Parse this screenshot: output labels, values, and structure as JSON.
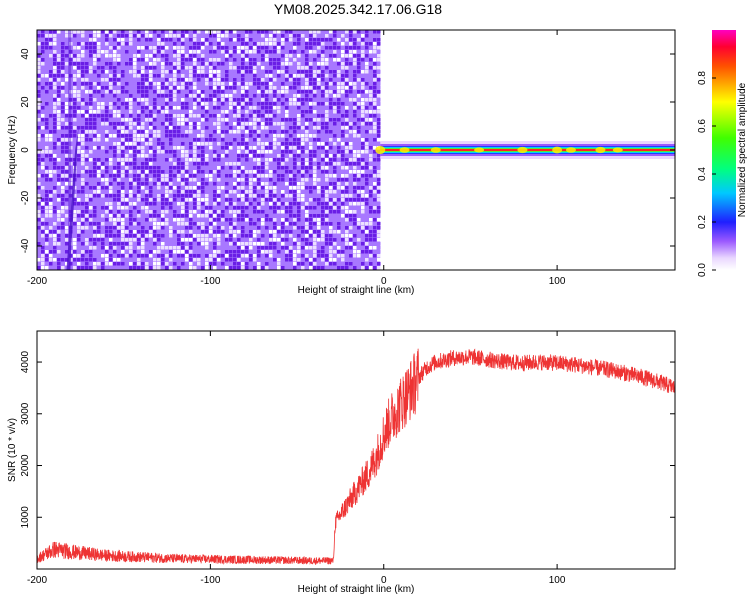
{
  "title": "YM08.2025.342.17.06.G18",
  "colors": {
    "spec_dark": "#6a1ee6",
    "spec_mid": "#a878ff",
    "spec_light": "#ece0ff",
    "snr_line": "#ee3333"
  },
  "chart_data": [
    {
      "type": "heatmap",
      "title": "",
      "xlabel": "Height of straight line (km)",
      "ylabel": "Frequency (Hz)",
      "xlim": [
        -200,
        168
      ],
      "ylim": [
        -50,
        50
      ],
      "xticks": [
        "-200",
        "-100",
        "0",
        "100"
      ],
      "yticks": [
        "-40",
        "-20",
        "0",
        "20",
        "40"
      ],
      "grid": false,
      "noise_region_km": [
        -200,
        -2
      ],
      "signal_band_hz": [
        -2,
        2
      ],
      "signal_start_km": -2,
      "colorbar": {
        "label": "Normalized spectral amplitude",
        "range": [
          0.0,
          1.0
        ],
        "ticks": [
          "0.0",
          "0.2",
          "0.4",
          "0.6",
          "0.8"
        ]
      }
    },
    {
      "type": "line",
      "title": "",
      "xlabel": "Height of straight line (km)",
      "ylabel": "SNR (10 * v/v)",
      "xlim": [
        -200,
        168
      ],
      "ylim": [
        0,
        4600
      ],
      "xticks": [
        "-200",
        "-100",
        "0",
        "100"
      ],
      "yticks": [
        "1000",
        "2000",
        "3000",
        "4000"
      ],
      "grid": false,
      "series": [
        {
          "x": [
            -200,
            -190,
            -180,
            -160,
            -140,
            -120,
            -100,
            -80,
            -60,
            -40,
            -29,
            -28,
            -24,
            -20,
            -16,
            -12,
            -8,
            -4,
            0,
            4,
            8,
            12,
            16,
            20,
            25,
            30,
            40,
            50,
            60,
            70,
            80,
            90,
            100,
            110,
            120,
            130,
            140,
            150,
            160,
            168
          ],
          "y": [
            200,
            380,
            330,
            260,
            230,
            200,
            190,
            180,
            170,
            160,
            160,
            900,
            1100,
            1300,
            1500,
            1700,
            1900,
            2200,
            2600,
            2900,
            3100,
            3300,
            3500,
            3700,
            3900,
            4000,
            4080,
            4100,
            4050,
            4000,
            3980,
            4000,
            3980,
            3950,
            3900,
            3850,
            3780,
            3700,
            3600,
            3500
          ]
        }
      ]
    }
  ]
}
